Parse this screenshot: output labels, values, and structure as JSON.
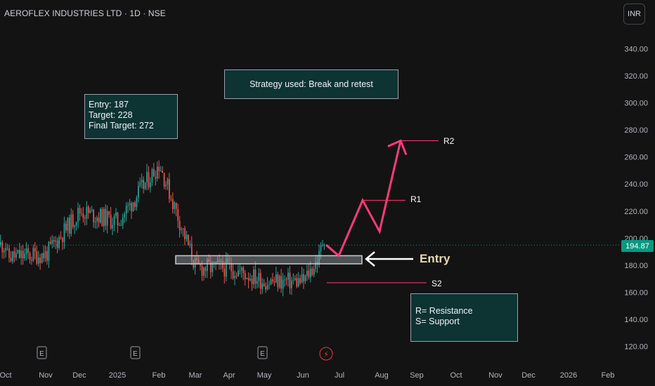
{
  "header": {
    "symbol_title": "AEROFLEX INDUSTRIES LTD · 1D · NSE",
    "currency_button": "INR"
  },
  "annotations": {
    "trade_box": [
      "Entry: 187",
      "Target: 228",
      "Final Target: 272"
    ],
    "strategy_box": "Strategy used: Break and retest",
    "legend_box": [
      "R= Resistance",
      "S= Support"
    ],
    "entry_label": "Entry",
    "r1_label": "R1",
    "r2_label": "R2",
    "s2_label": "S2"
  },
  "events": {
    "earnings_marker": "E",
    "earnings_count": 3,
    "dividend_marker": "⚡"
  },
  "colors": {
    "background": "#131313",
    "up_candle": "#26a69a",
    "down_candle": "#ef5350",
    "projection": "#ff3b77",
    "note_fill": "#0d3332",
    "price_label": "#089981"
  },
  "chart_data": {
    "type": "candlestick",
    "title": "AEROFLEX INDUSTRIES LTD · 1D · NSE",
    "y_axis": {
      "ticks": [
        "120.00",
        "140.00",
        "160.00",
        "180.00",
        "200.00",
        "220.00",
        "240.00",
        "260.00",
        "280.00",
        "300.00",
        "320.00",
        "340.00"
      ],
      "range": [
        110,
        352
      ],
      "position": "right"
    },
    "x_axis": {
      "ticks": [
        "Oct",
        "Nov",
        "Dec",
        "2025",
        "Feb",
        "Mar",
        "Apr",
        "May",
        "Jun",
        "Jul",
        "Aug",
        "Sep",
        "Oct",
        "Nov",
        "Dec",
        "2026",
        "Feb"
      ]
    },
    "last_price": "194.87",
    "entry_zone": {
      "from": 181,
      "to": 187,
      "start": "Feb",
      "end": "Jul"
    },
    "support_level_s2": 167,
    "resistance_level_r1": 228,
    "resistance_level_r2": 272,
    "price_path": [
      {
        "month": "Oct",
        "close": 186
      },
      {
        "month": "Nov",
        "close": 188
      },
      {
        "month": "Dec",
        "close": 220
      },
      {
        "month": "2025",
        "close": 212
      },
      {
        "month": "Feb",
        "close": 255
      },
      {
        "month": "Mar",
        "close": 178
      },
      {
        "month": "Apr",
        "close": 178
      },
      {
        "month": "May",
        "close": 168
      },
      {
        "month": "Jun",
        "close": 168
      },
      {
        "month": "Jun",
        "close": 195
      }
    ],
    "projection_path": [
      195,
      187,
      228,
      205,
      272
    ],
    "grid": false
  }
}
